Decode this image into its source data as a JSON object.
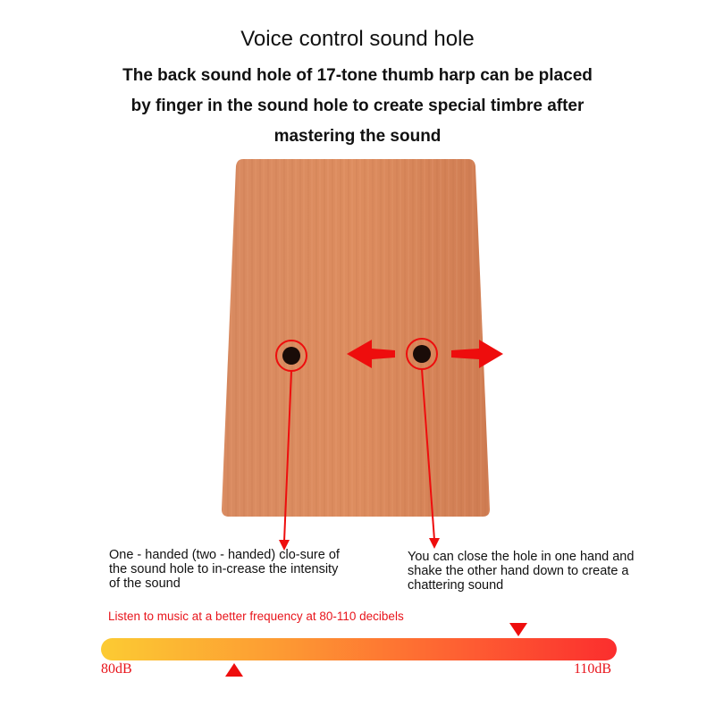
{
  "heading": {
    "title": "Voice control sound hole",
    "line1": "The back sound hole of 17-tone thumb harp can be placed",
    "line2": "by finger in the sound hole to create special timbre after",
    "line3": "mastering the sound"
  },
  "notes": {
    "left": "One - handed (two - handed) clo-sure of the sound hole to in-crease the intensity of the sound",
    "right": "You can close the hole in one hand and shake the other hand down to create a chattering sound"
  },
  "meter": {
    "hint": "Listen to music at a better frequency at 80-110 decibels",
    "min_label": "80dB",
    "max_label": "110dB",
    "gradient_colors": [
      "#fccb33",
      "#fb2e2e"
    ]
  },
  "colors": {
    "wood": "#d9855a",
    "accent": "#ee0d0d"
  }
}
